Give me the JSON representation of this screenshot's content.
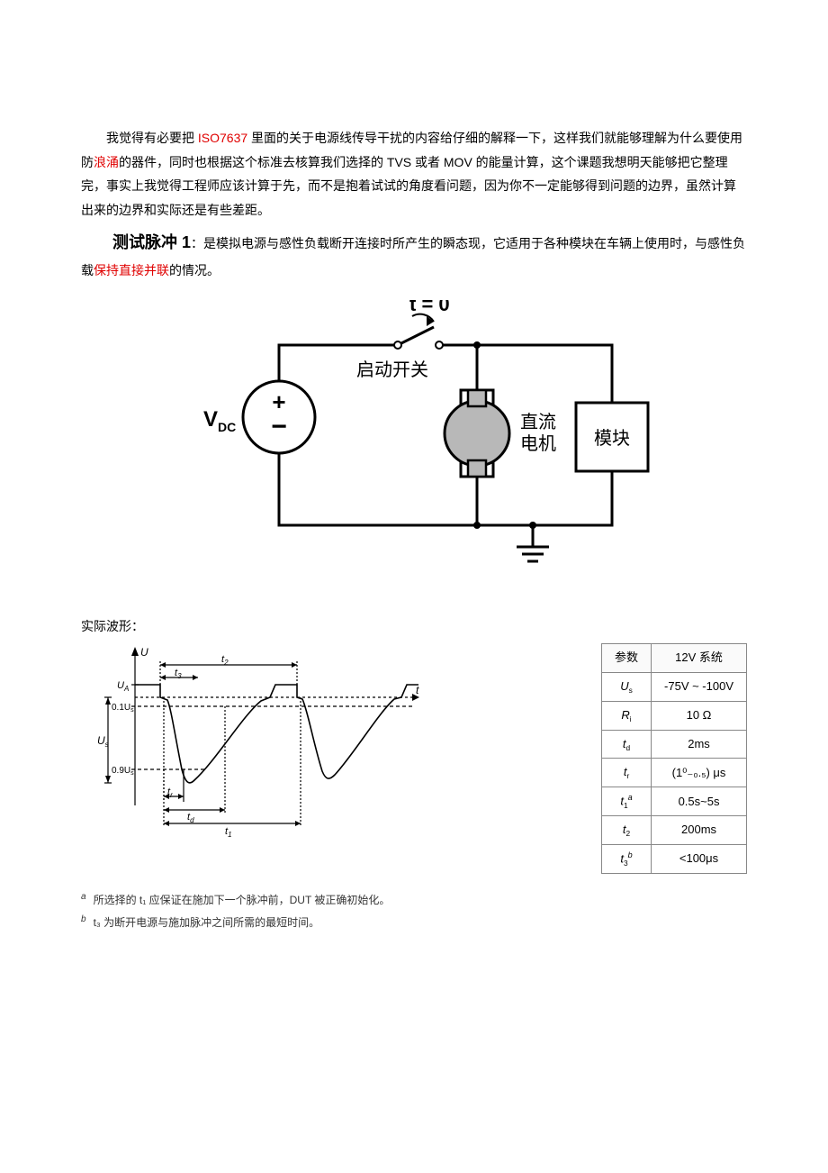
{
  "intro": {
    "seg1": "我觉得有必要把 ",
    "iso": "ISO7637",
    "seg2": " 里面的关于电源线传导干扰的内容给仔细的解释一下，这样我们就能够理解为什么要使用防",
    "surge": "浪涌",
    "seg3": "的器件，同时也根据这个标准去核算我们选择的 TVS 或者 MOV 的能量计算，这个课题我想明天能够把它整理完，事实上我觉得工程师应该计算于先，而不是抱着试试的角度看问题，因为你不一定能够得到问题的边界，虽然计算出来的边界和实际还是有些差距。"
  },
  "pulse": {
    "title": "测试脉冲 1",
    "lead": "：是模拟电源与感性负载断开连接时所产生的瞬态现，它适用于各种模块在车辆上使用时，与感性负载",
    "keep": "保持直接并联",
    "tail": "的情况。"
  },
  "diagram": {
    "t0": "t = 0",
    "switch_label": "启动开关",
    "vdc": "V",
    "vdc_sub": "DC",
    "motor_l1": "直流",
    "motor_l2": "电机",
    "module": "模块"
  },
  "section_actual_wave": "实际波形：",
  "wave": {
    "U": "U",
    "UA": "U",
    "UA_sub": "A",
    "p01Us": "0.1U",
    "p09Us": "0.9U",
    "Us": "U",
    "Us_sub": "s",
    "t": "t",
    "t1": "t",
    "t2": "t",
    "t3": "t",
    "tr": "t",
    "td": "t",
    "tr_sub": "r",
    "td_sub": "d",
    "t1_sub": "1",
    "t2_sub": "2",
    "t3_sub": "3"
  },
  "table": {
    "header_param": "参数",
    "header_sys": "12V 系统",
    "rows": [
      {
        "p": "U",
        "psub": "s",
        "v": "-75V ~ -100V"
      },
      {
        "p": "R",
        "psub": "i",
        "v": "10 Ω"
      },
      {
        "p": "t",
        "psub": "d",
        "v": "2ms"
      },
      {
        "p": "t",
        "psub": "r",
        "v": "(1⁰₋₀.₅) μs"
      },
      {
        "p": "t",
        "psub": "1",
        "psup": "a",
        "v": "0.5s~5s"
      },
      {
        "p": "t",
        "psub": "2",
        "v": "200ms"
      },
      {
        "p": "t",
        "psub": "3",
        "psup": "b",
        "v": "<100μs"
      }
    ]
  },
  "footnotes": {
    "a_sup": "a",
    "a_text": "所选择的 t₁ 应保证在施加下一个脉冲前，DUT 被正确初始化。",
    "b_sup": "b",
    "b_text": "t₃ 为断开电源与施加脉冲之间所需的最短时间。"
  },
  "colors": {
    "red": "#e00000",
    "text": "#000000",
    "stroke": "#000000",
    "motor_fill": "#b8b8b8",
    "table_border": "#888888"
  }
}
